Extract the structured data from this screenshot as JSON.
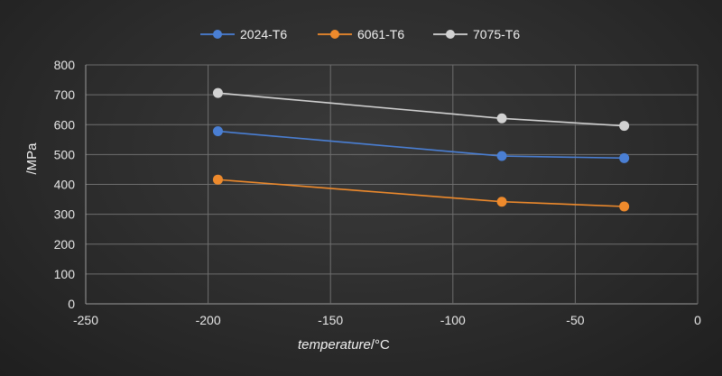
{
  "chart_data": {
    "type": "line",
    "title": "",
    "xlabel": "temperature",
    "xlabel_unit": "/°C",
    "ylabel": "/MPa",
    "xlim": [
      -250,
      0
    ],
    "ylim": [
      0,
      800
    ],
    "x_ticks": [
      -250,
      -200,
      -150,
      -100,
      -50,
      0
    ],
    "y_ticks": [
      0,
      100,
      200,
      300,
      400,
      500,
      600,
      700,
      800
    ],
    "grid": true,
    "legend_position": "top",
    "series": [
      {
        "name": "2024-T6",
        "color": "#4a7fd4",
        "points": [
          {
            "x": -196,
            "y": 578
          },
          {
            "x": -80,
            "y": 495
          },
          {
            "x": -30,
            "y": 488
          }
        ]
      },
      {
        "name": "6061-T6",
        "color": "#ee8a2c",
        "points": [
          {
            "x": -196,
            "y": 416
          },
          {
            "x": -80,
            "y": 342
          },
          {
            "x": -30,
            "y": 326
          }
        ]
      },
      {
        "name": "7075-T6",
        "color": "#d2d2d2",
        "points": [
          {
            "x": -196,
            "y": 706
          },
          {
            "x": -80,
            "y": 621
          },
          {
            "x": -30,
            "y": 596
          }
        ]
      }
    ]
  }
}
